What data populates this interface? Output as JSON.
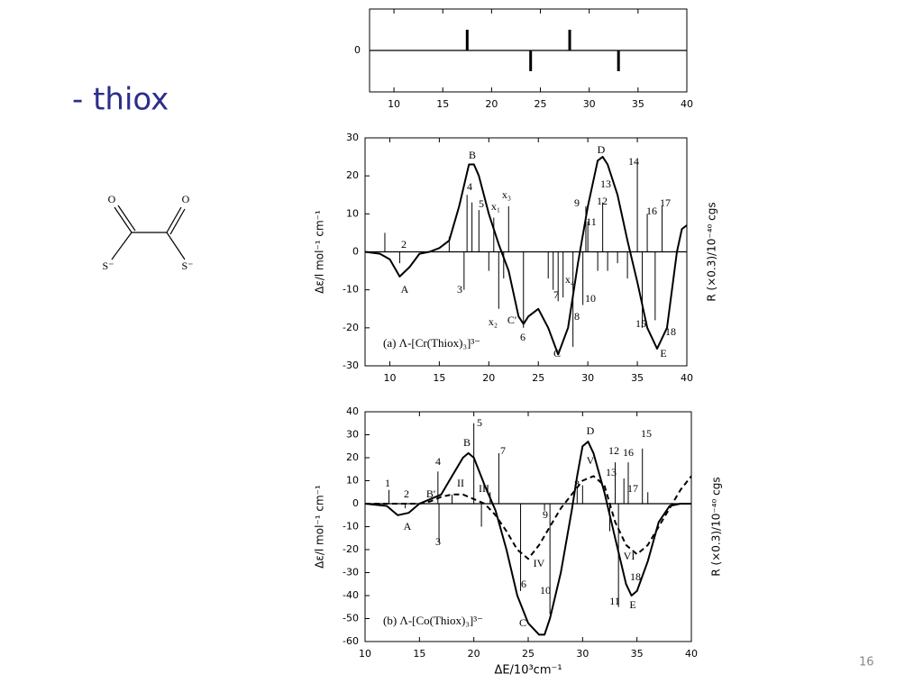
{
  "slide": {
    "title": "- thiox",
    "page_number": "16"
  },
  "structure": {
    "atoms": [
      "O",
      "O",
      "S⁻",
      "S⁻"
    ]
  },
  "chart_data": [
    {
      "type": "line",
      "xlim": [
        7.5,
        40
      ],
      "ylim": [
        -1,
        1
      ],
      "xticks": [
        10,
        15,
        20,
        25,
        30,
        35,
        40
      ],
      "yticks": [
        0
      ],
      "series": [
        {
          "style": "sticks",
          "color": "#000000",
          "x": [
            17.5,
            28,
            24,
            33
          ],
          "values": [
            0.5,
            0.5,
            -0.5,
            -0.5
          ]
        }
      ]
    },
    {
      "type": "line",
      "xlim": [
        7.5,
        40
      ],
      "ylim": [
        -30,
        30
      ],
      "xticks": [
        10,
        15,
        20,
        25,
        30,
        35,
        40
      ],
      "yticks": [
        -30,
        -20,
        -10,
        0,
        10,
        20,
        30
      ],
      "ylabel": "Δε/l mol⁻¹ cm⁻¹",
      "y2label": "R (×0.3)/10⁻⁴⁰ cgs",
      "label": "(a) Λ-[Cr(Thiox)₃]³⁻",
      "annotations": [
        "A",
        "2",
        "B",
        "4",
        "5",
        "x₁",
        "x₃",
        "3",
        "x₂",
        "C'",
        "6",
        "9",
        "11",
        "13",
        "12",
        "7",
        "x₄",
        "10",
        "8",
        "D",
        "14",
        "16",
        "17",
        "15",
        "18",
        "E",
        "C"
      ],
      "series": [
        {
          "style": "solid",
          "color": "#000000",
          "x": [
            7.5,
            9,
            10,
            11,
            12,
            13,
            14,
            15,
            16,
            17,
            18,
            18.5,
            19,
            20,
            21,
            22,
            23,
            23.5,
            24,
            25,
            26,
            27,
            28,
            29,
            30,
            31,
            31.5,
            32,
            33,
            34,
            35,
            36,
            37,
            38,
            39,
            39.5,
            40
          ],
          "values": [
            0,
            -0.5,
            -2,
            -6.5,
            -4,
            -0.5,
            0,
            1,
            3,
            12,
            23,
            23,
            20,
            10,
            2,
            -5,
            -17,
            -19,
            -17,
            -15,
            -20,
            -27,
            -20,
            -3,
            12,
            24,
            25,
            23,
            15,
            3,
            -8,
            -20,
            -25.5,
            -20,
            0,
            6,
            7
          ]
        },
        {
          "style": "sticks",
          "color": "#000000",
          "x": [
            9.5,
            11,
            16,
            17.5,
            17.8,
            18.3,
            19,
            20,
            20.5,
            21,
            21.5,
            22,
            23.5,
            26,
            26.5,
            27,
            27.5,
            28.5,
            29.5,
            29.8,
            30,
            31,
            31.5,
            32,
            33,
            34,
            35,
            35.5,
            36,
            36.8,
            37.5
          ],
          "values": [
            5,
            -3,
            4,
            -10,
            15,
            13,
            11,
            -5,
            9,
            -15,
            -7,
            12,
            -20,
            -7,
            -10,
            -13,
            -12,
            -25,
            -14,
            12,
            8,
            -5,
            13,
            -5,
            -3,
            -7,
            24,
            -20,
            10,
            -18,
            12
          ]
        }
      ]
    },
    {
      "type": "line",
      "xlim": [
        10,
        40
      ],
      "ylim": [
        -60,
        40
      ],
      "xticks": [
        10,
        15,
        20,
        25,
        30,
        35,
        40
      ],
      "yticks": [
        -60,
        -50,
        -40,
        -30,
        -20,
        -10,
        0,
        10,
        20,
        30,
        40
      ],
      "xlabel": "ΔE/10³cm⁻¹",
      "ylabel": "Δε/l mol⁻¹ cm⁻¹",
      "y2label": "R (×0.3)/10⁻⁴⁰ cgs",
      "label": "(b) Λ-[Co(Thiox)₃]³⁻",
      "annotations": [
        "1",
        "2",
        "A",
        "B'",
        "4",
        "3",
        "II",
        "B",
        "5",
        "III",
        "7",
        "6",
        "IV",
        "9",
        "10",
        "C",
        "8",
        "D",
        "V",
        "13",
        "12",
        "16",
        "17",
        "15",
        "VI",
        "18",
        "11",
        "E"
      ],
      "series": [
        {
          "style": "solid",
          "color": "#000000",
          "x": [
            10,
            12,
            13,
            14,
            15,
            16,
            17,
            18,
            19,
            19.5,
            20,
            21,
            22,
            23,
            24,
            25,
            26,
            26.5,
            27,
            28,
            29,
            29.5,
            30,
            30.5,
            31,
            32,
            33,
            34,
            34.5,
            35,
            36,
            37,
            38,
            39,
            40
          ],
          "values": [
            0,
            -1,
            -5,
            -4,
            0,
            2,
            4,
            12,
            20,
            22,
            20,
            8,
            -3,
            -20,
            -40,
            -52,
            -57,
            -57,
            -50,
            -30,
            -3,
            12,
            25,
            27,
            22,
            5,
            -15,
            -35,
            -40,
            -38,
            -25,
            -8,
            -1,
            0,
            0
          ]
        },
        {
          "style": "dashed",
          "color": "#000000",
          "x": [
            10,
            12,
            14,
            15,
            16,
            17,
            18,
            19,
            20,
            21,
            22,
            23,
            24,
            25,
            26,
            27,
            28,
            29,
            30,
            31,
            32,
            33,
            34,
            35,
            36,
            37,
            38,
            39,
            40
          ],
          "values": [
            0,
            0,
            0,
            0,
            1,
            3,
            4,
            4,
            2,
            0,
            -5,
            -12,
            -20,
            -24,
            -18,
            -10,
            -2,
            4,
            10,
            12,
            8,
            -8,
            -18,
            -22,
            -18,
            -10,
            -2,
            6,
            12
          ]
        },
        {
          "style": "sticks",
          "color": "#000000",
          "x": [
            12.2,
            13.7,
            16.7,
            16.8,
            18,
            20,
            20.7,
            21.5,
            22.3,
            24.3,
            26.5,
            27,
            29.5,
            30,
            32.5,
            33,
            33.3,
            33.8,
            34.2,
            35.5,
            36
          ],
          "values": [
            6,
            -2,
            14,
            -17,
            4,
            35,
            -10,
            5,
            22,
            -38,
            -3,
            -48,
            7,
            8,
            -12,
            18,
            -45,
            11,
            18,
            24,
            5
          ]
        }
      ]
    }
  ]
}
